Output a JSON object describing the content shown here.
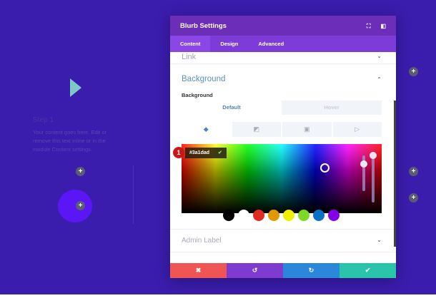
{
  "canvas": {
    "step_title": "Step 1",
    "step_body": "Your content goes here. Edit or remove this text inline or in the module Content settings.",
    "plus": "+"
  },
  "modal": {
    "title": "Blurb Settings",
    "icons": {
      "fullscreen": "⛶",
      "sidebar": "◧"
    },
    "tabs": [
      {
        "label": "Content"
      },
      {
        "label": "Design"
      },
      {
        "label": "Advanced"
      }
    ],
    "link_section": "Link",
    "background_section": "Background",
    "background_label": "Background",
    "state_tabs": [
      "Default",
      "Hover"
    ],
    "bg_types": [
      "color-icon",
      "gradient-icon",
      "image-icon",
      "video-icon"
    ],
    "color_picker": {
      "hex": "#3a1dad",
      "badge": "1",
      "swatches": [
        "#000000",
        "#ffffff",
        "#e02b20",
        "#e09900",
        "#edf000",
        "#7cda24",
        "#0c71c3",
        "#8300e9"
      ]
    },
    "admin_label": "Admin Label",
    "footer": {
      "cancel": "✖",
      "undo": "↺",
      "redo": "↻",
      "save": "✔",
      "colors": [
        "#ef5555",
        "#7e3bd0",
        "#2b87da",
        "#29c4a9"
      ]
    }
  }
}
